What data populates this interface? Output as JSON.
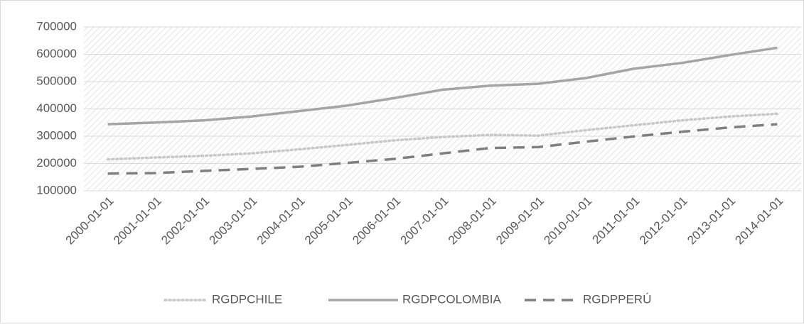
{
  "chart_data": {
    "type": "line",
    "categories": [
      "2000-01-01",
      "2001-01-01",
      "2002-01-01",
      "2003-01-01",
      "2004-01-01",
      "2005-01-01",
      "2006-01-01",
      "2007-01-01",
      "2008-01-01",
      "2009-01-01",
      "2010-01-01",
      "2011-01-01",
      "2012-01-01",
      "2013-01-01",
      "2014-01-01"
    ],
    "series": [
      {
        "name": "RGDPCHILE",
        "color": "#c8c8c8",
        "dash": "dotted",
        "values": [
          215000,
          222000,
          228000,
          237000,
          252000,
          268000,
          285000,
          297000,
          305000,
          302000,
          322000,
          340000,
          358000,
          372000,
          382000
        ]
      },
      {
        "name": "RGDPCOLOMBIA",
        "color": "#a5a5a5",
        "dash": "solid",
        "values": [
          344000,
          350000,
          358000,
          372000,
          392000,
          412000,
          440000,
          470000,
          485000,
          492000,
          513000,
          547000,
          568000,
          597000,
          624000
        ]
      },
      {
        "name": "RGDPPERÚ",
        "color": "#7f7f7f",
        "dash": "dashed",
        "values": [
          163000,
          165000,
          173000,
          180000,
          188000,
          202000,
          217000,
          237000,
          257000,
          260000,
          280000,
          299000,
          316000,
          332000,
          344000
        ]
      }
    ],
    "ylim": [
      100000,
      700000
    ],
    "yticks": [
      100000,
      200000,
      300000,
      400000,
      500000,
      600000,
      700000
    ],
    "grid": true,
    "legend": "bottom"
  }
}
